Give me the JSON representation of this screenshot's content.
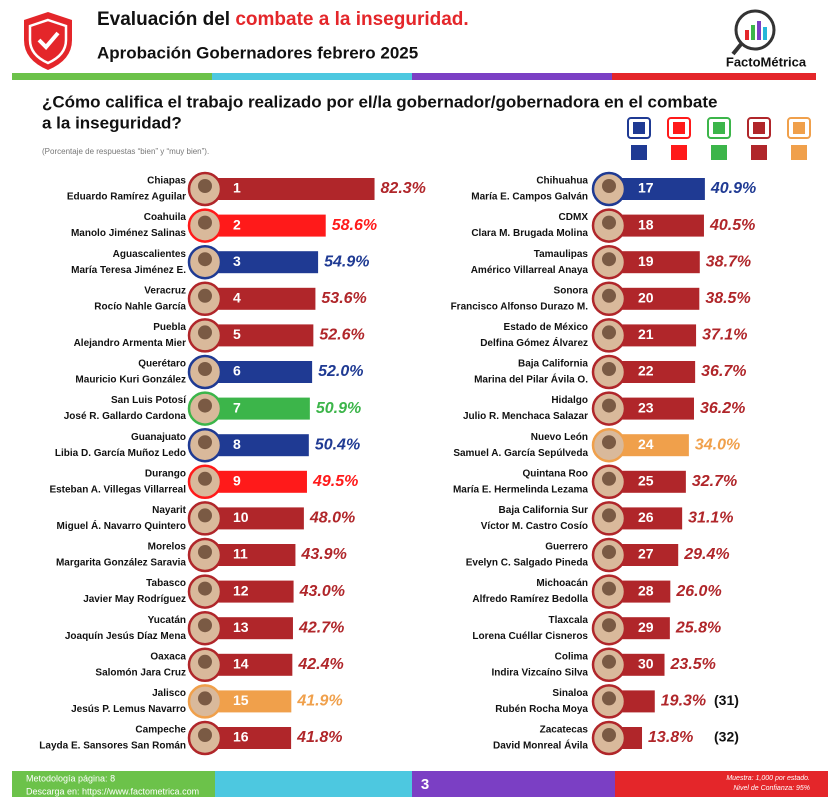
{
  "chart_data": {
    "type": "bar",
    "title_prefix": "Evaluación del",
    "title_highlight": "combate a la inseguridad.",
    "subtitle": "Aprobación Gobernadores febrero 2025",
    "brand": "FactoMétrica",
    "question": [
      "¿Cómo califica el trabajo realizado por el/la gobernador/gobernadora en el combate",
      "a la inseguridad?"
    ],
    "note": "(Porcentaje de respuestas “bien” y “muy bien”).",
    "legend_colors": [
      "#1f3a93",
      "#ff1a1a",
      "#3cb54a",
      "#b0262a",
      "#f0a04b"
    ],
    "categories": [
      "Chiapas",
      "Coahuila",
      "Aguascalientes",
      "Veracruz",
      "Puebla",
      "Querétaro",
      "San Luis Potosí",
      "Guanajuato",
      "Durango",
      "Nayarit",
      "Morelos",
      "Tabasco",
      "Yucatán",
      "Oaxaca",
      "Jalisco",
      "Campeche",
      "Chihuahua",
      "CDMX",
      "Tamaulipas",
      "Sonora",
      "Estado de México",
      "Baja California",
      "Hidalgo",
      "Nuevo León",
      "Quintana Roo",
      "Baja California Sur",
      "Guerrero",
      "Michoacán",
      "Tlaxcala",
      "Colima",
      "Sinaloa",
      "Zacatecas"
    ],
    "governors": [
      "Eduardo Ramírez Aguilar",
      "Manolo Jiménez Salinas",
      "María Teresa Jiménez E.",
      "Rocío Nahle García",
      "Alejandro Armenta Mier",
      "Mauricio Kuri González",
      "José R. Gallardo Cardona",
      "Libia D. García Muñoz Ledo",
      "Esteban A. Villegas Villarreal",
      "Miguel Á. Navarro Quintero",
      "Margarita González Saravia",
      "Javier May Rodríguez",
      "Joaquín Jesús Díaz Mena",
      "Salomón Jara Cruz",
      "Jesús P. Lemus Navarro",
      "Layda E. Sansores San Román",
      "María E. Campos Galván",
      "Clara M. Brugada Molina",
      "Américo Villarreal Anaya",
      "Francisco Alfonso Durazo M.",
      "Delfina Gómez Álvarez",
      "Marina del Pilar Ávila O.",
      "Julio R. Menchaca Salazar",
      "Samuel A. García Sepúlveda",
      "María E. Hermelinda Lezama",
      "Víctor M. Castro Cosío",
      "Evelyn C. Salgado Pineda",
      "Alfredo Ramírez Bedolla",
      "Lorena Cuéllar Cisneros",
      "Indira Vizcaíno Silva",
      "Rubén Rocha Moya",
      "David Monreal Ávila"
    ],
    "ranks": [
      1,
      2,
      3,
      4,
      5,
      6,
      7,
      8,
      9,
      10,
      11,
      12,
      13,
      14,
      15,
      16,
      17,
      18,
      19,
      20,
      21,
      22,
      23,
      24,
      25,
      26,
      27,
      28,
      29,
      30,
      {
        "value": 31,
        "label": "(31)"
      },
      {
        "value": 32,
        "label": "(32)"
      }
    ],
    "values": [
      82.3,
      58.6,
      54.9,
      53.6,
      52.6,
      52.0,
      50.9,
      50.4,
      49.5,
      48.0,
      43.9,
      43.0,
      42.7,
      42.4,
      41.9,
      41.8,
      40.9,
      40.5,
      38.7,
      38.5,
      37.1,
      36.7,
      36.2,
      34.0,
      32.7,
      31.1,
      29.4,
      26.0,
      25.8,
      23.5,
      19.3,
      13.8
    ],
    "value_labels": [
      "82.3%",
      "58.6%",
      "54.9%",
      "53.6%",
      "52.6%",
      "52.0%",
      "50.9%",
      "50.4%",
      "49.5%",
      "48.0%",
      "43.9%",
      "43.0%",
      "42.7%",
      "42.4%",
      "41.9%",
      "41.8%",
      "40.9%",
      "40.5%",
      "38.7%",
      "38.5%",
      "37.1%",
      "36.7%",
      "36.2%",
      "34.0%",
      "32.7%",
      "31.1%",
      "29.4%",
      "26.0%",
      "25.8%",
      "23.5%",
      "19.3%",
      "13.8%"
    ],
    "colors": [
      "#b0262a",
      "#ff1a1a",
      "#1f3a93",
      "#b0262a",
      "#b0262a",
      "#1f3a93",
      "#3cb54a",
      "#1f3a93",
      "#ff1a1a",
      "#b0262a",
      "#b0262a",
      "#b0262a",
      "#b0262a",
      "#b0262a",
      "#f0a04b",
      "#b0262a",
      "#1f3a93",
      "#b0262a",
      "#b0262a",
      "#b0262a",
      "#b0262a",
      "#b0262a",
      "#b0262a",
      "#f0a04b",
      "#b0262a",
      "#b0262a",
      "#b0262a",
      "#b0262a",
      "#b0262a",
      "#b0262a",
      "#b0262a",
      "#b0262a"
    ],
    "footer": {
      "methodology": "Metodología página: 8",
      "download": "Descarga en: https://www.factometrica.com",
      "page": "3",
      "sample": "Muestra: 1,000 por estado.",
      "confidence": "Nivel de Confianza: 95%"
    }
  }
}
